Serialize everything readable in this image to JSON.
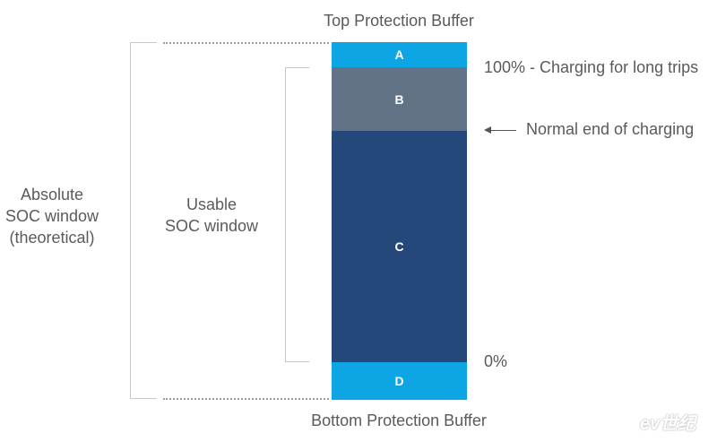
{
  "diagram": {
    "top_buffer_label": "Top Protection Buffer",
    "bottom_buffer_label": "Bottom Protection Buffer",
    "segments": [
      {
        "id": "A",
        "color": "#0ea5e4"
      },
      {
        "id": "B",
        "color": "#627387"
      },
      {
        "id": "C",
        "color": "#25487b"
      },
      {
        "id": "D",
        "color": "#0ea5e4"
      }
    ],
    "right_labels": {
      "full": "100% - Charging for long trips",
      "normal_end": "Normal end of charging",
      "zero": "0%"
    },
    "absolute_window": [
      "Absolute",
      "SOC window",
      "(theoretical)"
    ],
    "usable_window": [
      "Usable",
      "SOC window"
    ]
  },
  "watermark": "ev世纪"
}
